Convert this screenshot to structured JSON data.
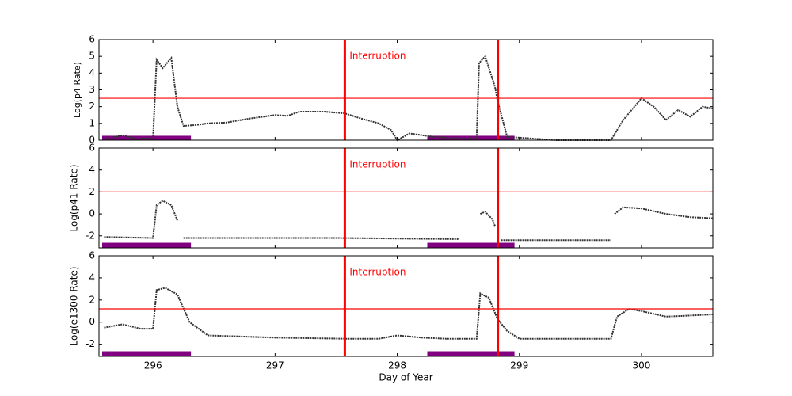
{
  "chart_data": [
    {
      "type": "line",
      "ylabel": "Log(p4 Rate)",
      "xlim": [
        295.558,
        300.584
      ],
      "ylim": [
        0,
        6
      ],
      "yticks": [
        0,
        1,
        2,
        3,
        4,
        5,
        6
      ],
      "threshold": 2.5,
      "vlines": [
        297.571,
        298.824
      ],
      "annotation": "Interruption",
      "intervals": [
        [
          295.584,
          296.311
        ],
        [
          298.246,
          298.96
        ]
      ],
      "interval_level": 0.12,
      "interval_color": "#800080",
      "line_color": "#ff0000",
      "series": [
        {
          "color": "#333333",
          "x": [
            295.6,
            295.75,
            295.85,
            296.0,
            296.03,
            296.08,
            296.15,
            296.2,
            296.25,
            296.35,
            296.45,
            296.6,
            296.8,
            297.0,
            297.1,
            297.2,
            297.4,
            297.57,
            297.7,
            297.85,
            297.95,
            298.0,
            298.1,
            298.3,
            298.5,
            298.65,
            298.67,
            298.72,
            298.8,
            298.82,
            298.9,
            299.1,
            299.3,
            299.5,
            299.75,
            299.85,
            300.0,
            300.1,
            300.2,
            300.3,
            300.4,
            300.5,
            300.58
          ],
          "values": [
            0.05,
            0.3,
            0.1,
            0.1,
            4.8,
            4.3,
            4.9,
            2.0,
            0.85,
            0.9,
            1.0,
            1.05,
            1.3,
            1.5,
            1.45,
            1.7,
            1.7,
            1.6,
            1.3,
            1.0,
            0.6,
            0.0,
            0.4,
            0.2,
            0.1,
            0.1,
            4.6,
            5.0,
            3.2,
            2.4,
            0.2,
            0.1,
            0.0,
            0.0,
            0.0,
            1.2,
            2.5,
            2.0,
            1.2,
            1.8,
            1.4,
            2.0,
            1.9
          ]
        }
      ]
    },
    {
      "type": "line",
      "ylabel": "Log(p41 Rate)",
      "xlim": [
        295.558,
        300.584
      ],
      "ylim": [
        -3.1,
        6
      ],
      "yticks": [
        -2,
        0,
        2,
        4,
        6
      ],
      "threshold": 2,
      "vlines": [
        297.571,
        298.824
      ],
      "annotation": "Interruption",
      "intervals": [
        [
          295.584,
          296.311
        ],
        [
          298.246,
          298.96
        ]
      ],
      "interval_level": -2.85,
      "interval_color": "#800080",
      "line_color": "#ff0000",
      "series": [
        {
          "color": "#333333",
          "x": [
            295.6,
            296.0,
            296.03,
            296.08,
            296.15,
            296.2,
            296.22,
            296.25,
            297.5,
            298.5,
            298.66,
            298.68,
            298.72,
            298.78,
            298.8,
            298.82,
            298.85,
            299.75,
            299.76,
            299.78,
            299.85,
            300.0,
            300.2,
            300.4,
            300.58
          ],
          "values": [
            -2.1,
            -2.2,
            0.8,
            1.2,
            0.8,
            -0.6,
            null,
            -2.2,
            -2.2,
            -2.3,
            null,
            0.0,
            0.2,
            -0.5,
            -1.1,
            null,
            -2.4,
            -2.4,
            null,
            0.0,
            0.6,
            0.5,
            0.0,
            -0.3,
            -0.4
          ]
        }
      ]
    },
    {
      "type": "line",
      "ylabel": "Log(e1300 Rate)",
      "xlabel": "Day of Year",
      "xlim": [
        295.558,
        300.584
      ],
      "ylim": [
        -3.1,
        6
      ],
      "yticks": [
        -2,
        0,
        2,
        4,
        6
      ],
      "xticks": [
        296,
        297,
        298,
        299,
        300
      ],
      "threshold": 1.2,
      "vlines": [
        297.571,
        298.824
      ],
      "annotation": "Interruption",
      "intervals": [
        [
          295.584,
          296.311
        ],
        [
          298.246,
          298.96
        ]
      ],
      "interval_level": -2.85,
      "interval_color": "#800080",
      "line_color": "#ff0000",
      "series": [
        {
          "color": "#333333",
          "x": [
            295.6,
            295.75,
            295.9,
            296.0,
            296.03,
            296.1,
            296.2,
            296.3,
            296.45,
            297.0,
            297.57,
            297.85,
            298.0,
            298.2,
            298.4,
            298.65,
            298.68,
            298.75,
            298.82,
            298.9,
            299.0,
            299.3,
            299.75,
            299.8,
            299.9,
            300.0,
            300.2,
            300.4,
            300.58
          ],
          "values": [
            -0.5,
            -0.2,
            -0.6,
            -0.6,
            2.9,
            3.1,
            2.5,
            0.0,
            -1.2,
            -1.4,
            -1.5,
            -1.5,
            -1.2,
            -1.4,
            -1.5,
            -1.5,
            2.6,
            2.2,
            0.3,
            -0.8,
            -1.5,
            -1.5,
            -1.5,
            0.5,
            1.2,
            1.0,
            0.5,
            0.6,
            0.7
          ]
        }
      ]
    }
  ]
}
